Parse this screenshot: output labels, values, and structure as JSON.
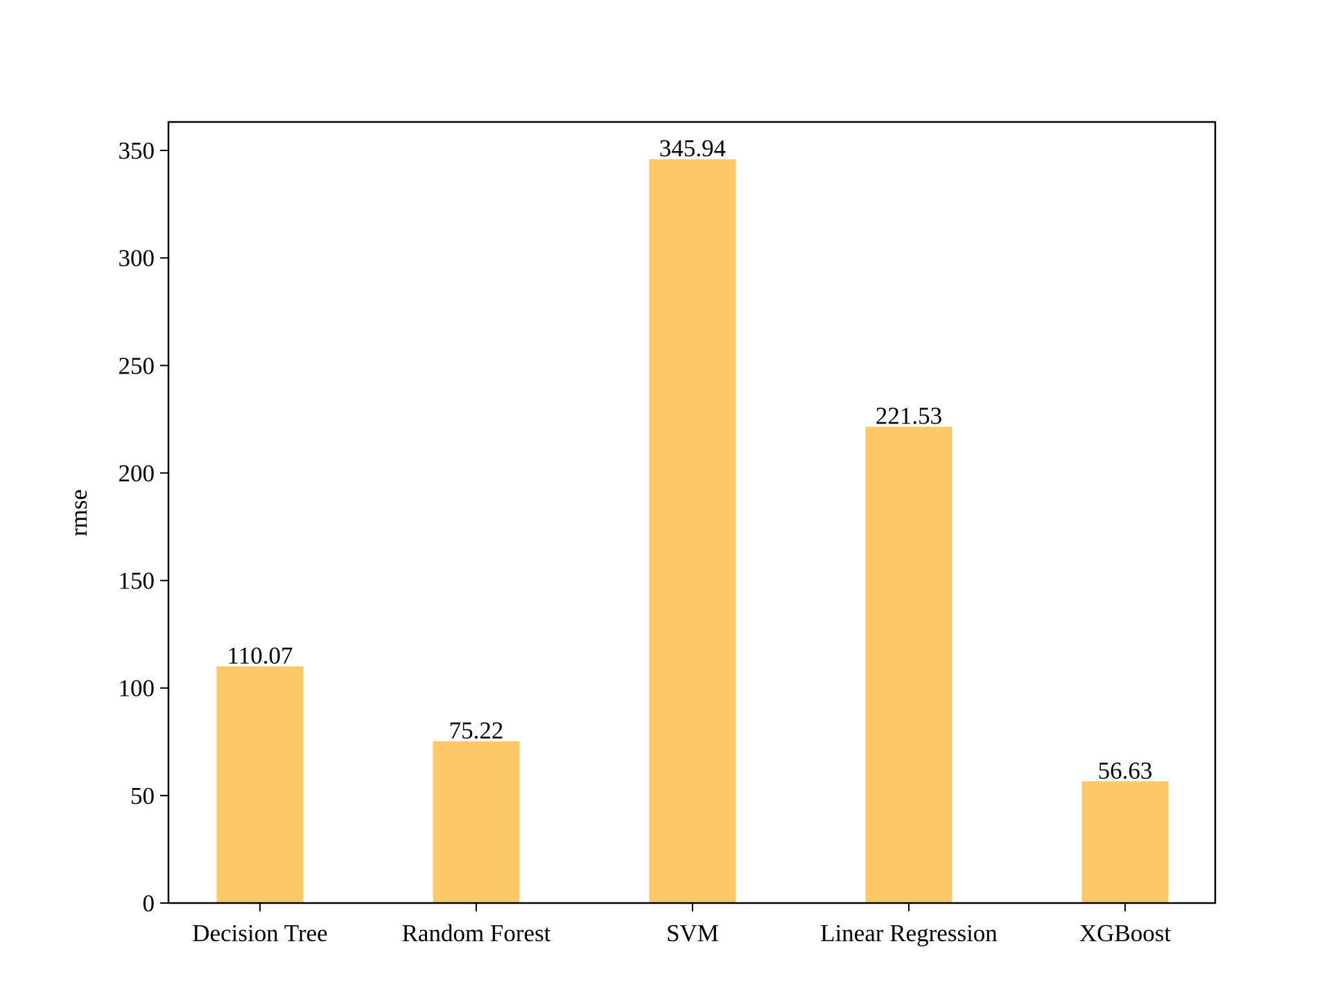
{
  "chart_data": {
    "type": "bar",
    "categories": [
      "Decision Tree",
      "Random Forest",
      "SVM",
      "Linear Regression",
      "XGBoost"
    ],
    "values": [
      110.07,
      75.22,
      345.94,
      221.53,
      56.63
    ],
    "data_labels": [
      "110.07",
      "75.22",
      "345.94",
      "221.53",
      "56.63"
    ],
    "title": "",
    "xlabel": "",
    "ylabel": "rmse",
    "ylim": [
      0,
      363.24
    ],
    "yticks": [
      0,
      50,
      100,
      150,
      200,
      250,
      300,
      350
    ],
    "bar_color": "#fdc967",
    "grid": false,
    "legend": "none"
  }
}
